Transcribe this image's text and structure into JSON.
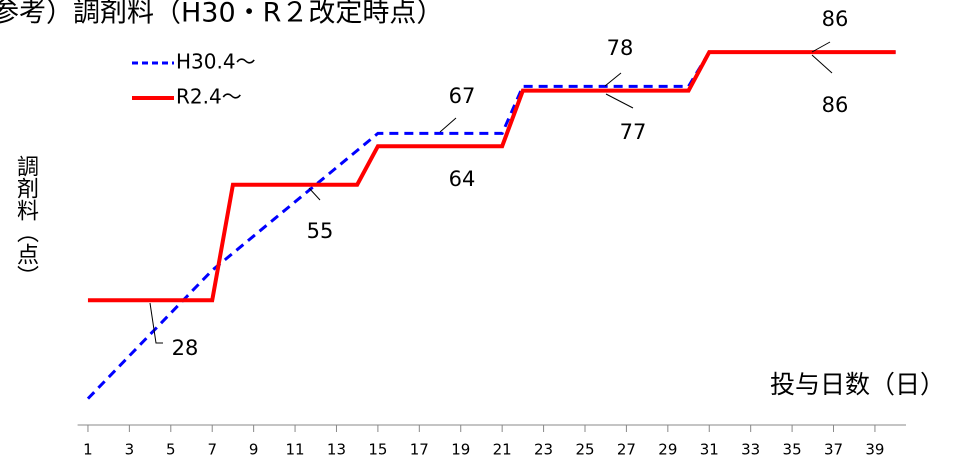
{
  "chart_data": {
    "type": "line",
    "title": "参考）調剤料（H30・R２改定時点）",
    "x_label": "投与日数（日）",
    "y_label": "調剤料（点）",
    "x": [
      1,
      2,
      3,
      4,
      5,
      6,
      7,
      8,
      9,
      10,
      11,
      12,
      13,
      14,
      15,
      16,
      17,
      18,
      19,
      20,
      21,
      22,
      23,
      24,
      25,
      26,
      27,
      28,
      29,
      30,
      31,
      32,
      33,
      34,
      35,
      36,
      37,
      38,
      39,
      40
    ],
    "series": [
      {
        "name": "H30.4～",
        "color": "#0000ff",
        "dash": true,
        "values": [
          5,
          10,
          15,
          20,
          25,
          30,
          35,
          39,
          43,
          47,
          51,
          55,
          59,
          63,
          67,
          67,
          67,
          67,
          67,
          67,
          67,
          78,
          78,
          78,
          78,
          78,
          78,
          78,
          78,
          78,
          86,
          86,
          86,
          86,
          86,
          86,
          86,
          86,
          86,
          86
        ]
      },
      {
        "name": "R2.4～",
        "color": "#ff0000",
        "dash": false,
        "values": [
          28,
          28,
          28,
          28,
          28,
          28,
          28,
          55,
          55,
          55,
          55,
          55,
          55,
          55,
          64,
          64,
          64,
          64,
          64,
          64,
          64,
          77,
          77,
          77,
          77,
          77,
          77,
          77,
          77,
          77,
          86,
          86,
          86,
          86,
          86,
          86,
          86,
          86,
          86,
          86
        ]
      }
    ],
    "annotations": [
      {
        "text": "28"
      },
      {
        "text": "55"
      },
      {
        "text": "64"
      },
      {
        "text": "67"
      },
      {
        "text": "77"
      },
      {
        "text": "78"
      },
      {
        "text": "86"
      },
      {
        "text": "86"
      }
    ],
    "xlim": [
      0.5,
      40.5
    ],
    "xticks": [
      1,
      3,
      5,
      7,
      9,
      11,
      13,
      15,
      17,
      19,
      21,
      23,
      25,
      27,
      29,
      31,
      33,
      35,
      37,
      39
    ],
    "ylim": [
      0,
      90
    ],
    "legend": "upper left"
  }
}
